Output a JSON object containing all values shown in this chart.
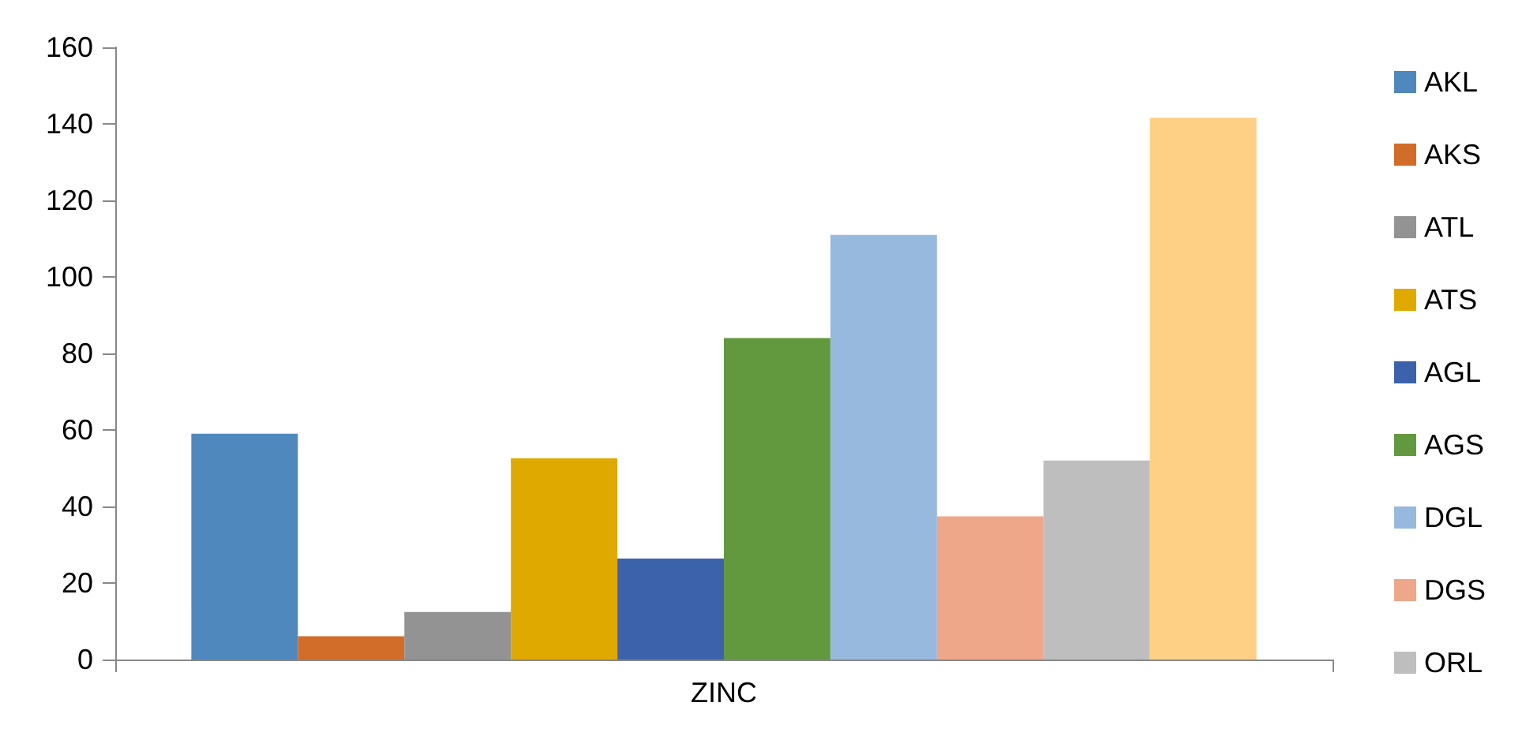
{
  "chart_data": {
    "type": "bar",
    "xlabel": null,
    "categories": [
      "ZINC"
    ],
    "series": [
      {
        "name": "AKL",
        "color": "#4f88bd",
        "values": [
          59
        ]
      },
      {
        "name": "AKS",
        "color": "#d26c29",
        "values": [
          6.1
        ]
      },
      {
        "name": "ATL",
        "color": "#939393",
        "values": [
          12.4
        ]
      },
      {
        "name": "ATS",
        "color": "#e0a900",
        "values": [
          52.6
        ]
      },
      {
        "name": "AGL",
        "color": "#3b62ab",
        "values": [
          26.4
        ]
      },
      {
        "name": "AGS",
        "color": "#62983e",
        "values": [
          84
        ]
      },
      {
        "name": "DGL",
        "color": "#98b9de",
        "values": [
          111
        ]
      },
      {
        "name": "DGS",
        "color": "#efa78a",
        "values": [
          37.4
        ]
      },
      {
        "name": "ORL",
        "color": "#bebebe",
        "values": [
          52
        ]
      },
      {
        "color": "#fed086",
        "values": [
          141.6
        ]
      }
    ],
    "ylim": [
      0,
      160
    ],
    "yticks": [
      0,
      20,
      40,
      60,
      80,
      100,
      120,
      140,
      160
    ],
    "grid": false,
    "legend": "right"
  }
}
